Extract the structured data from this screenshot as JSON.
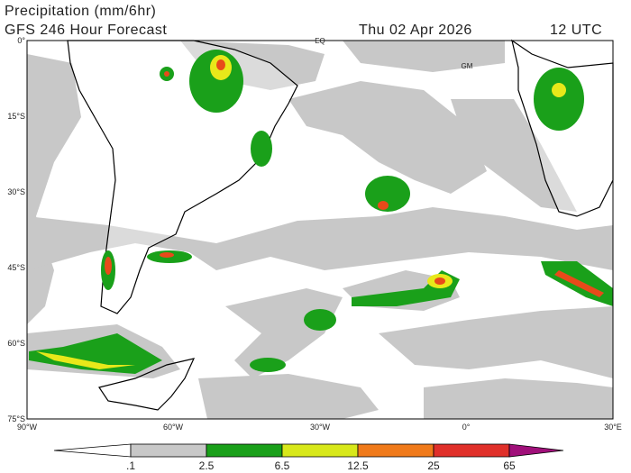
{
  "header": {
    "title": "Precipitation (mm/6hr)",
    "subtitle": "GFS 246 Hour Forecast",
    "date": "Thu 02 Apr 2026",
    "time": "12 UTC"
  },
  "map": {
    "latitude_labels": [
      "0°",
      "15°S",
      "30°S",
      "45°S",
      "60°S",
      "75°S"
    ],
    "longitude_labels": [
      "90°W",
      "60°W",
      "30°W",
      "0°",
      "30°E"
    ],
    "labels": [
      "EQ",
      "GM"
    ]
  },
  "colorbar": {
    "labels": [
      ".1",
      "2.5",
      "6.5",
      "12.5",
      "25",
      "65"
    ]
  }
}
